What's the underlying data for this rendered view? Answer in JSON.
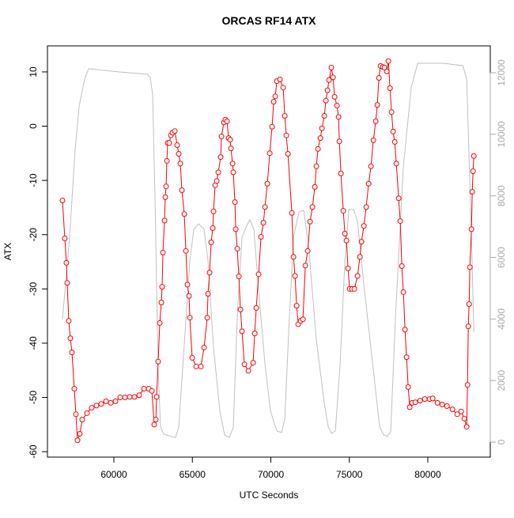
{
  "chart_data": {
    "type": "line",
    "title": "ORCAS RF14 ATX",
    "xlabel": "UTC Seconds",
    "ylabel": "ATX",
    "xlim": [
      55768,
      83980
    ],
    "ylim": [
      -61,
      14.8
    ],
    "y2lim": [
      -488,
      12874
    ],
    "xticks": [
      60000,
      65000,
      70000,
      75000,
      80000
    ],
    "yticks": [
      -60,
      -50,
      -40,
      -30,
      -20,
      -10,
      0,
      10
    ],
    "y2ticks": [
      0,
      2000,
      4000,
      6000,
      8000,
      10000,
      12000
    ],
    "series": [
      {
        "color": "#ff0000",
        "marker": "circle",
        "x": [
          56724,
          56875,
          56976,
          57026,
          57127,
          57228,
          57329,
          57480,
          57581,
          57682,
          57833,
          57984,
          58286,
          58589,
          58891,
          59194,
          59496,
          59798,
          60101,
          60403,
          60706,
          61008,
          61310,
          61613,
          61915,
          62218,
          62419,
          62570,
          62671,
          62722,
          62822,
          62923,
          63024,
          63074,
          63125,
          63226,
          63276,
          63326,
          63377,
          63427,
          63528,
          63629,
          63730,
          63881,
          64032,
          64133,
          64234,
          64334,
          64486,
          64586,
          64687,
          64788,
          64838,
          64990,
          65242,
          65544,
          65746,
          65947,
          65998,
          66098,
          66199,
          66300,
          66350,
          66451,
          66552,
          66653,
          66804,
          66854,
          67006,
          67106,
          67207,
          67308,
          67409,
          67459,
          67560,
          67610,
          67711,
          67762,
          67862,
          67963,
          68064,
          68165,
          68316,
          68568,
          68870,
          68971,
          69072,
          69223,
          69374,
          69526,
          69626,
          69778,
          69929,
          70080,
          70181,
          70282,
          70382,
          70584,
          70786,
          70886,
          70987,
          71088,
          71340,
          71441,
          71542,
          71642,
          71743,
          71894,
          72046,
          72197,
          72348,
          72499,
          72650,
          72802,
          72902,
          73003,
          73154,
          73255,
          73406,
          73507,
          73608,
          73709,
          73860,
          73961,
          74062,
          74213,
          74314,
          74364,
          74465,
          74616,
          74717,
          74818,
          74918,
          75019,
          75170,
          75322,
          75523,
          75674,
          75775,
          75926,
          76078,
          76229,
          76380,
          76531,
          76682,
          76783,
          76884,
          76985,
          77136,
          77237,
          77388,
          77489,
          77590,
          77690,
          77791,
          77892,
          77993,
          78144,
          78245,
          78346,
          78446,
          78547,
          78648,
          78749,
          78850,
          79001,
          79202,
          79505,
          79807,
          80110,
          80311,
          80614,
          80916,
          81218,
          81571,
          81874,
          82126,
          82327,
          82478,
          82529,
          82579,
          82630,
          82680,
          82781,
          82831,
          82882,
          82932
        ],
        "values": [
          -13.7,
          -20.7,
          -25.2,
          -28.9,
          -35.9,
          -39.1,
          -41.7,
          -48.4,
          -53.1,
          -57.9,
          -56.7,
          -54.1,
          -52.9,
          -51.9,
          -51.5,
          -51.2,
          -50.7,
          -51.0,
          -50.7,
          -50.0,
          -50.0,
          -49.9,
          -49.9,
          -49.6,
          -48.4,
          -48.4,
          -48.8,
          -55.0,
          -54.1,
          -49.9,
          -43.4,
          -36.3,
          -32.5,
          -29.6,
          -23.3,
          -17.4,
          -13.1,
          -11.1,
          -6.4,
          -3.1,
          -3.1,
          -1.7,
          -1.2,
          -0.9,
          -3.5,
          -5.1,
          -6.9,
          -11.8,
          -16.2,
          -23.0,
          -29.2,
          -31.3,
          -35.3,
          -42.7,
          -44.3,
          -44.3,
          -40.8,
          -35.3,
          -30.9,
          -27.0,
          -21.4,
          -18.8,
          -15.7,
          -10.9,
          -10.1,
          -8.5,
          -5.7,
          -1.9,
          0.7,
          1.2,
          0.9,
          -2.2,
          -2.5,
          -4.1,
          -6.9,
          -8.5,
          -14.0,
          -19.0,
          -22.6,
          -27.7,
          -33.8,
          -37.8,
          -43.9,
          -45.1,
          -43.6,
          -38.2,
          -33.5,
          -27.3,
          -20.4,
          -17.8,
          -14.9,
          -10.6,
          -5.0,
          -0.1,
          4.5,
          5.5,
          8.3,
          8.6,
          7.1,
          1.9,
          -1.7,
          -5.1,
          -16.0,
          -24.1,
          -27.6,
          -33.1,
          -36.5,
          -35.9,
          -35.6,
          -25.7,
          -23.0,
          -17.6,
          -14.9,
          -11.2,
          -7.4,
          -4.2,
          -2.2,
          -0.4,
          1.9,
          4.7,
          6.6,
          8.5,
          10.8,
          9.0,
          5.4,
          3.8,
          1.7,
          -2.8,
          -8.7,
          -15.6,
          -19.8,
          -21.1,
          -26.2,
          -30.0,
          -30.0,
          -30.0,
          -27.6,
          -24.1,
          -21.3,
          -18.4,
          -14.9,
          -10.6,
          -7.4,
          -2.6,
          0.9,
          3.9,
          8.9,
          11.1,
          10.9,
          10.8,
          10.1,
          12.0,
          7.0,
          2.6,
          -1.0,
          -2.9,
          -6.9,
          -13.3,
          -17.5,
          -25.8,
          -30.6,
          -37.5,
          -42.6,
          -48.1,
          -51.8,
          -51.0,
          -50.9,
          -50.6,
          -50.3,
          -50.3,
          -50.2,
          -51.0,
          -51.3,
          -51.6,
          -52.2,
          -53.1,
          -52.6,
          -53.9,
          -55.4,
          -47.7,
          -36.9,
          -32.8,
          -26.0,
          -19.0,
          -12.1,
          -8.3,
          -5.5
        ]
      },
      {
        "color": "#c0c0c0",
        "axis": "y2",
        "x": [
          56724,
          57178,
          57530,
          57782,
          58135,
          58387,
          60302,
          62117,
          62318,
          62470,
          62621,
          62822,
          62974,
          63175,
          63528,
          63931,
          64133,
          64435,
          64838,
          65090,
          65393,
          65746,
          65998,
          66350,
          66754,
          67056,
          67358,
          67610,
          67862,
          68165,
          68467,
          68669,
          68921,
          69274,
          69626,
          69979,
          70382,
          70685,
          70886,
          71138,
          71441,
          71794,
          72096,
          72398,
          72902,
          73406,
          73658,
          73860,
          74112,
          74414,
          74717,
          74969,
          75270,
          75523,
          75926,
          76430,
          76934,
          77186,
          77438,
          77640,
          77942,
          78446,
          78950,
          79353,
          80966,
          82226,
          82478,
          82781,
          82932
        ],
        "values": [
          3984,
          6656,
          9483,
          10897,
          11796,
          12130,
          12028,
          11951,
          11848,
          11282,
          7941,
          2287,
          488,
          257,
          206,
          154,
          488,
          2801,
          5885,
          6913,
          7093,
          6913,
          5885,
          3058,
          1002,
          231,
          154,
          488,
          4086,
          6656,
          7042,
          7222,
          6913,
          4600,
          2544,
          1002,
          360,
          308,
          745,
          3572,
          6656,
          7479,
          7530,
          6399,
          3315,
          1259,
          488,
          283,
          360,
          2544,
          5885,
          7556,
          7556,
          7170,
          5114,
          2801,
          488,
          231,
          180,
          360,
          4086,
          8969,
          11539,
          12310,
          12310,
          12233,
          11796,
          6656,
          3572
        ]
      }
    ]
  }
}
